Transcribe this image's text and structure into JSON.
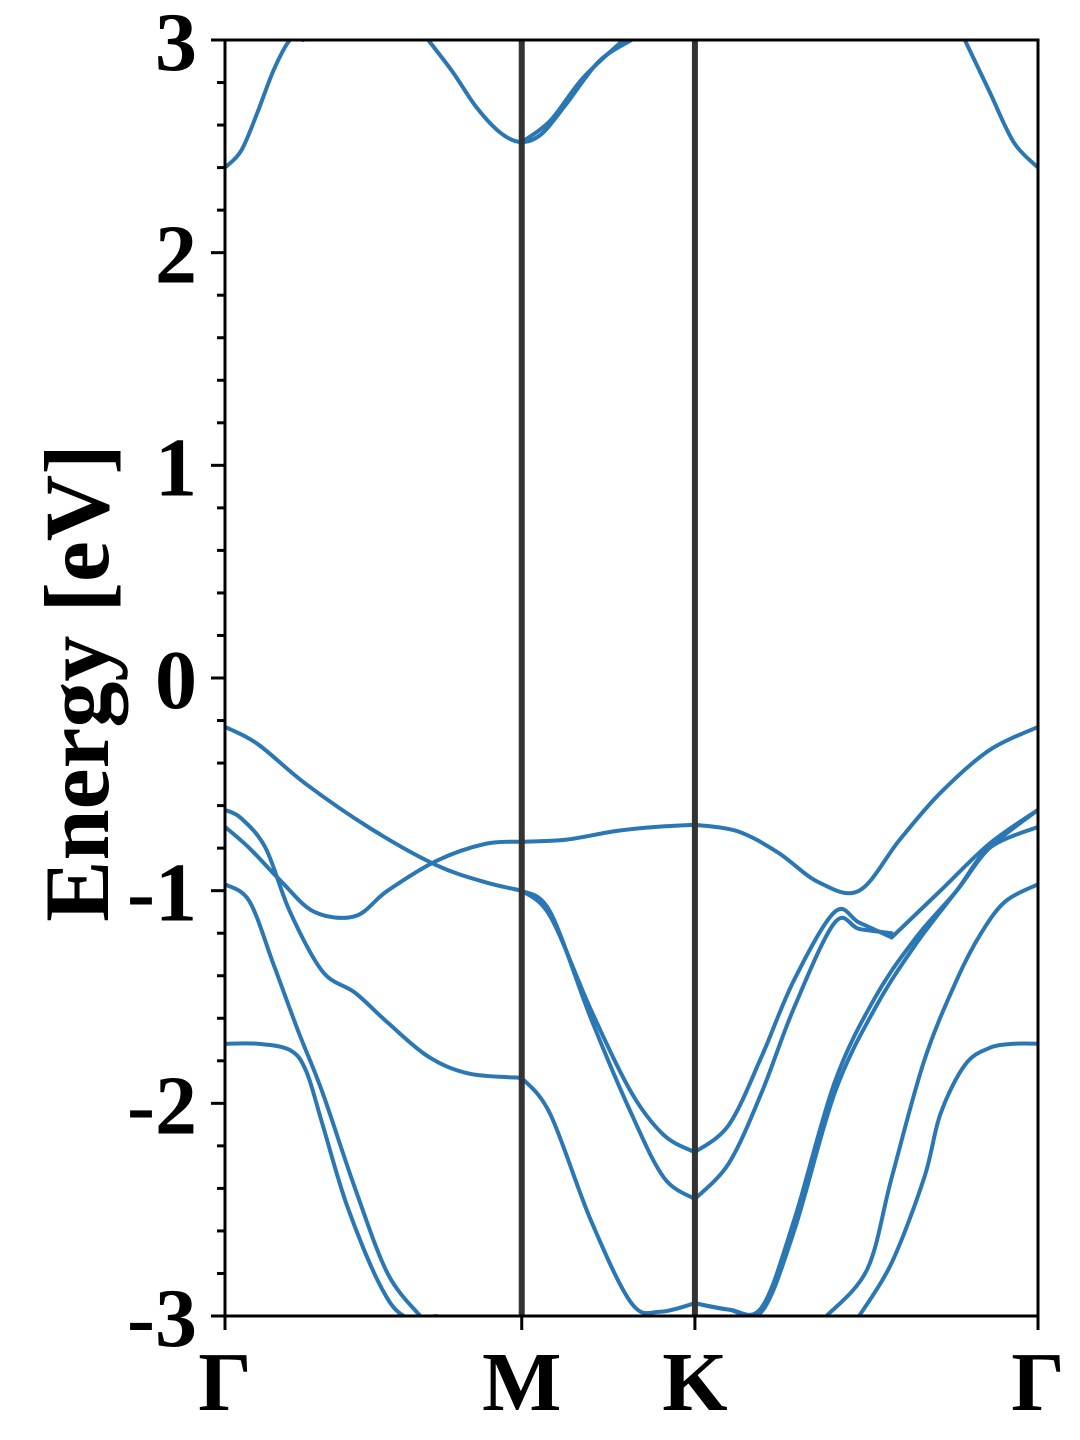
{
  "chart_data": {
    "type": "line",
    "title": "",
    "xlabel": "",
    "ylabel": "Energy [eV]",
    "ylim": [
      -3,
      3
    ],
    "xlim": [
      0,
      1
    ],
    "grid": false,
    "legend": "none",
    "line_color": "#2a77b4",
    "kpath_line_color": "#333333",
    "yticks": [
      -3,
      -2,
      -1,
      0,
      1,
      2,
      3
    ],
    "ytick_labels": [
      "-3",
      "-2",
      "-1",
      "0",
      "1",
      "2",
      "3"
    ],
    "yminor_step": 0.2,
    "xticks": [
      0,
      0.365,
      0.578,
      1.0
    ],
    "xtick_labels": [
      "Γ",
      "M",
      "K",
      "Γ"
    ],
    "series": [
      {
        "x": [
          0,
          0.02,
          0.04,
          0.06,
          0.08,
          0.096
        ],
        "y": [
          2.4,
          2.48,
          2.66,
          2.86,
          3.0,
          3.0
        ]
      },
      {
        "x": [
          0.25,
          0.28,
          0.31,
          0.34,
          0.365,
          0.39,
          0.42,
          0.46,
          0.5
        ],
        "y": [
          3.0,
          2.85,
          2.68,
          2.56,
          2.52,
          2.56,
          2.7,
          2.9,
          3.0
        ]
      },
      {
        "x": [
          0.365,
          0.4,
          0.44,
          0.49
        ],
        "y": [
          2.52,
          2.62,
          2.82,
          3.0
        ]
      },
      {
        "x": [
          0.91,
          0.94,
          0.97,
          1.0
        ],
        "y": [
          3.0,
          2.76,
          2.52,
          2.4
        ]
      },
      {
        "x": [
          0,
          0.04,
          0.1,
          0.18,
          0.26,
          0.32,
          0.365
        ],
        "y": [
          -0.23,
          -0.31,
          -0.5,
          -0.71,
          -0.88,
          -0.96,
          -1.0
        ]
      },
      {
        "x": [
          0.365,
          0.4,
          0.45,
          0.5,
          0.54,
          0.578
        ],
        "y": [
          -1.0,
          -1.1,
          -1.6,
          -2.05,
          -2.35,
          -2.45
        ]
      },
      {
        "x": [
          0.365,
          0.4,
          0.45,
          0.5,
          0.54,
          0.578
        ],
        "y": [
          -1.0,
          -1.12,
          -1.56,
          -1.95,
          -2.15,
          -2.23
        ]
      },
      {
        "x": [
          0.578,
          0.62,
          0.66,
          0.7,
          0.75,
          0.78,
          0.82
        ],
        "y": [
          -2.23,
          -2.1,
          -1.78,
          -1.42,
          -1.1,
          -1.15,
          -1.22
        ]
      },
      {
        "x": [
          0.578,
          0.62,
          0.66,
          0.7,
          0.75,
          0.78,
          0.82
        ],
        "y": [
          -2.45,
          -2.28,
          -1.95,
          -1.55,
          -1.15,
          -1.18,
          -1.2
        ]
      },
      {
        "x": [
          0.82,
          0.88,
          0.94,
          1.0
        ],
        "y": [
          -1.22,
          -1.0,
          -0.78,
          -0.62
        ]
      },
      {
        "x": [
          0,
          0.02,
          0.05,
          0.08,
          0.12,
          0.16,
          0.2,
          0.25,
          0.3,
          0.365
        ],
        "y": [
          -0.62,
          -0.66,
          -0.8,
          -1.1,
          -1.38,
          -1.48,
          -1.62,
          -1.78,
          -1.86,
          -1.88
        ]
      },
      {
        "x": [
          0.365,
          0.4,
          0.45,
          0.5,
          0.535,
          0.578
        ],
        "y": [
          -1.88,
          -2.05,
          -2.55,
          -2.94,
          -2.98,
          -2.94
        ]
      },
      {
        "x": [
          0.578,
          0.62,
          0.66,
          0.7,
          0.75,
          0.8,
          0.85,
          0.9,
          0.94,
          1.0
        ],
        "y": [
          -2.94,
          -2.97,
          -2.98,
          -2.6,
          -1.95,
          -1.55,
          -1.25,
          -1.0,
          -0.8,
          -0.7
        ]
      },
      {
        "x": [
          0.578,
          0.62,
          0.66,
          0.7,
          0.75,
          0.8,
          0.85,
          0.9,
          0.94,
          1.0
        ],
        "y": [
          -2.94,
          -2.97,
          -2.96,
          -2.55,
          -1.9,
          -1.5,
          -1.22,
          -1.0,
          -0.8,
          -0.62
        ]
      },
      {
        "x": [
          0,
          0.03,
          0.07,
          0.11,
          0.16,
          0.2,
          0.26,
          0.32,
          0.365
        ],
        "y": [
          -0.7,
          -0.8,
          -0.96,
          -1.1,
          -1.12,
          -1.0,
          -0.86,
          -0.78,
          -0.77
        ]
      },
      {
        "x": [
          0.365,
          0.42,
          0.48,
          0.53,
          0.578
        ],
        "y": [
          -0.77,
          -0.76,
          -0.72,
          -0.7,
          -0.69
        ]
      },
      {
        "x": [
          0.578,
          0.63,
          0.68,
          0.73,
          0.78,
          0.83,
          0.88,
          0.94,
          1.0
        ],
        "y": [
          -0.69,
          -0.72,
          -0.82,
          -0.96,
          -1.0,
          -0.76,
          -0.54,
          -0.34,
          -0.23
        ]
      },
      {
        "x": [
          0,
          0.03,
          0.06,
          0.09,
          0.12,
          0.16,
          0.2,
          0.24
        ],
        "y": [
          -0.97,
          -1.05,
          -1.35,
          -1.66,
          -1.95,
          -2.4,
          -2.8,
          -3.0
        ]
      },
      {
        "x": [
          0,
          0.04,
          0.08,
          0.1,
          0.12,
          0.15,
          0.19,
          0.22,
          0.26
        ],
        "y": [
          -1.72,
          -1.72,
          -1.75,
          -1.85,
          -2.1,
          -2.48,
          -2.85,
          -3.0,
          -3.0
        ]
      },
      {
        "x": [
          0.74,
          0.79,
          0.82,
          0.86,
          0.9,
          0.93,
          0.96,
          1.0
        ],
        "y": [
          -3.0,
          -2.78,
          -2.35,
          -1.8,
          -1.42,
          -1.2,
          -1.05,
          -0.97
        ]
      },
      {
        "x": [
          0.78,
          0.82,
          0.86,
          0.88,
          0.91,
          0.94,
          0.97,
          1.0
        ],
        "y": [
          -3.0,
          -2.75,
          -2.35,
          -2.05,
          -1.82,
          -1.74,
          -1.72,
          -1.72
        ]
      }
    ]
  }
}
